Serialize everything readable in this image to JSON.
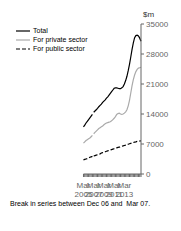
{
  "chart_data": {
    "type": "line",
    "ylabel": "$m",
    "footnote": "Break in series between Dec 06 and  Mar 07.",
    "categories": [
      "Mar\n2005",
      null,
      null,
      null,
      null,
      null,
      null,
      null,
      "Mar\n2007",
      null,
      null,
      null,
      null,
      null,
      null,
      null,
      "Mar\n2009",
      null,
      null,
      null,
      null,
      null,
      null,
      null,
      "Mar\n2011",
      null,
      null,
      null,
      null,
      null,
      null,
      null,
      "Mar\n2013",
      null,
      null,
      null,
      null,
      null,
      null,
      null,
      null,
      null,
      null,
      null,
      null,
      null
    ],
    "ylim": [
      0,
      35000
    ],
    "yticks": [
      0,
      7000,
      14000,
      21000,
      28000,
      35000
    ],
    "grid": false,
    "legend": "upper left",
    "series": [
      {
        "name": "Total",
        "color": "#000000",
        "line_style": "solid",
        "values": [
          11000,
          11400,
          11900,
          12300,
          12700,
          13100,
          13500,
          13900,
          null,
          null,
          null,
          null,
          null,
          null,
          null,
          null,
          null,
          null,
          null,
          null,
          null,
          null,
          null,
          null,
          null,
          null,
          null,
          null,
          null,
          null,
          null,
          null,
          null,
          null,
          null,
          null,
          null,
          null,
          null,
          null,
          null,
          null,
          null,
          null,
          null,
          null
        ]
      },
      {
        "name": "Total",
        "color": "#000000",
        "line_style": "solid",
        "values": [
          null,
          null,
          null,
          null,
          null,
          null,
          null,
          null,
          14400,
          14700,
          15000,
          15300,
          15700,
          16000,
          16300,
          16700,
          17000,
          17300,
          17700,
          18000,
          18400,
          18800,
          19200,
          19600,
          20000,
          20100,
          20100,
          20000,
          19900,
          19900,
          20100,
          20400,
          21000,
          21800,
          22800,
          24100,
          25600,
          27300,
          29100,
          30600,
          31800,
          32300,
          32400,
          32200,
          31700,
          31000
        ]
      },
      {
        "name": "For private sector",
        "color": "#aaaaaa",
        "line_style": "solid",
        "values": [
          7200,
          7500,
          7800,
          8000,
          8200,
          8400,
          8700,
          9000,
          null,
          null,
          null,
          null,
          null,
          null,
          null,
          null,
          null,
          null,
          null,
          null,
          null,
          null,
          null,
          null,
          null,
          null,
          null,
          null,
          null,
          null,
          null,
          null,
          null,
          null,
          null,
          null,
          null,
          null,
          null,
          null,
          null,
          null,
          null,
          null,
          null,
          null
        ]
      },
      {
        "name": "For private sector",
        "color": "#aaaaaa",
        "line_style": "solid",
        "values": [
          null,
          null,
          null,
          null,
          null,
          null,
          null,
          null,
          9400,
          9700,
          10000,
          10300,
          10600,
          10800,
          11000,
          11200,
          11500,
          11700,
          11900,
          12000,
          12100,
          12200,
          12400,
          12700,
          13000,
          13400,
          13900,
          14100,
          14200,
          14000,
          13900,
          14000,
          14200,
          14500,
          15000,
          15900,
          17200,
          18900,
          20600,
          22000,
          23100,
          23900,
          24400,
          24700,
          24800,
          24900
        ]
      },
      {
        "name": "For public sector",
        "color": "#000000",
        "line_style": "dashed",
        "values": [
          3300,
          3400,
          3500,
          3600,
          3750,
          3900,
          4000,
          4100,
          null,
          null,
          null,
          null,
          null,
          null,
          null,
          null,
          null,
          null,
          null,
          null,
          null,
          null,
          null,
          null,
          null,
          null,
          null,
          null,
          null,
          null,
          null,
          null,
          null,
          null,
          null,
          null,
          null,
          null,
          null,
          null,
          null,
          null,
          null,
          null,
          null,
          null
        ]
      },
      {
        "name": "For public sector",
        "color": "#000000",
        "line_style": "dashed",
        "values": [
          null,
          null,
          null,
          null,
          null,
          null,
          null,
          null,
          4200,
          4300,
          4400,
          4500,
          4600,
          4700,
          4900,
          5000,
          5100,
          5200,
          5300,
          5400,
          5500,
          5600,
          5700,
          5800,
          5900,
          6000,
          6100,
          6200,
          6250,
          6350,
          6450,
          6550,
          6650,
          6750,
          6850,
          6950,
          7050,
          7150,
          7250,
          7350,
          7450,
          7500,
          7600,
          7650,
          7700,
          7720
        ]
      }
    ]
  }
}
